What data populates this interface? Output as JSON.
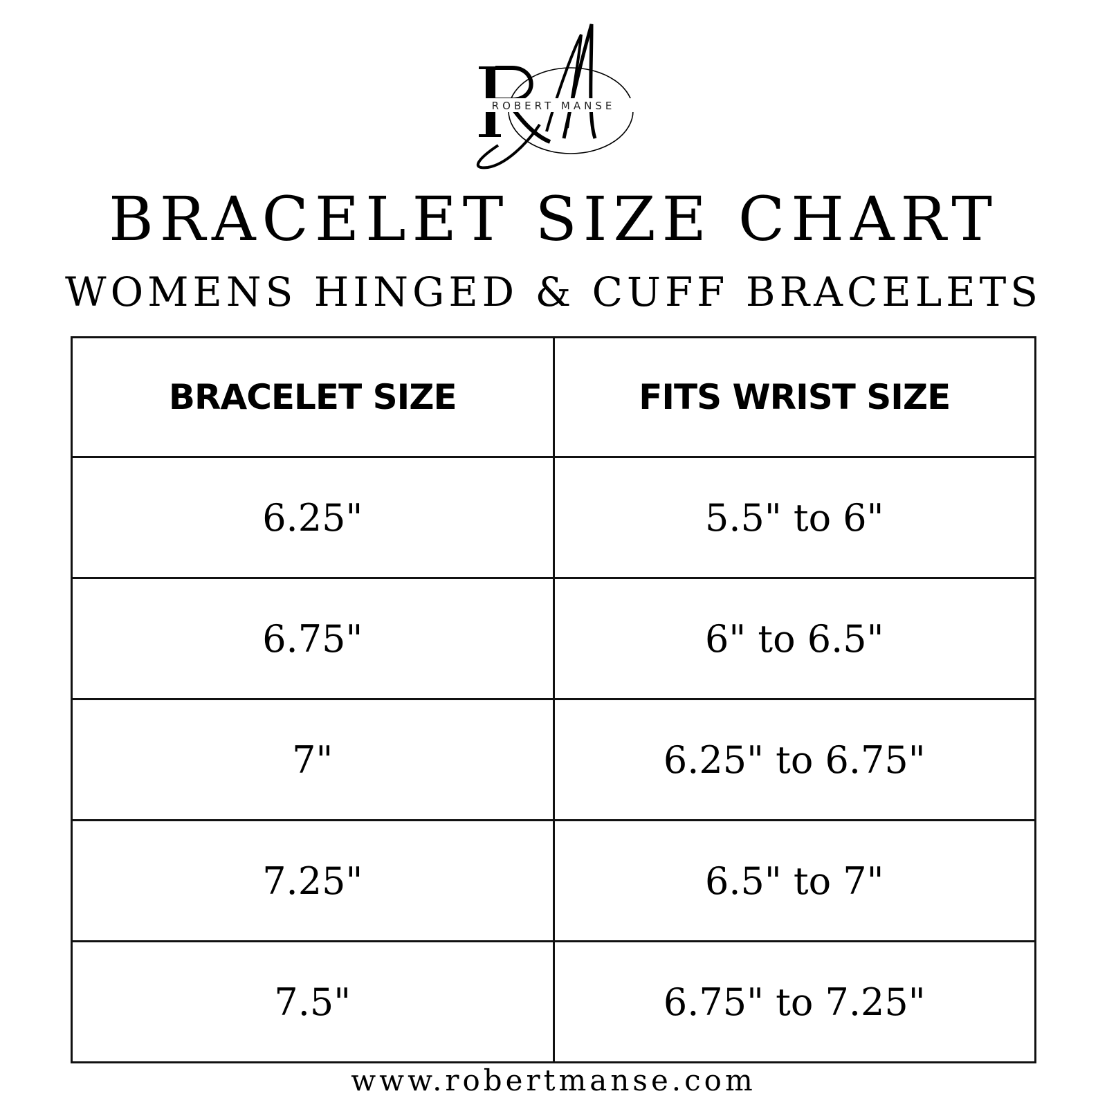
{
  "logo": {
    "monogram": "RM",
    "brand": "ROBERT MANSE"
  },
  "title": "BRACELET SIZE CHART",
  "subtitle": "WOMENS HINGED & CUFF BRACELETS",
  "table": {
    "headers": [
      "BRACELET SIZE",
      "FITS WRIST SIZE"
    ],
    "rows": [
      [
        "6.25\"",
        "5.5\" to 6\""
      ],
      [
        "6.75\"",
        "6\" to 6.5\""
      ],
      [
        "7\"",
        "6.25\" to 6.75\""
      ],
      [
        "7.25\"",
        "6.5\" to 7\""
      ],
      [
        "7.5\"",
        "6.75\" to 7.25\""
      ]
    ]
  },
  "footer": {
    "url": "www.robertmanse.com"
  }
}
